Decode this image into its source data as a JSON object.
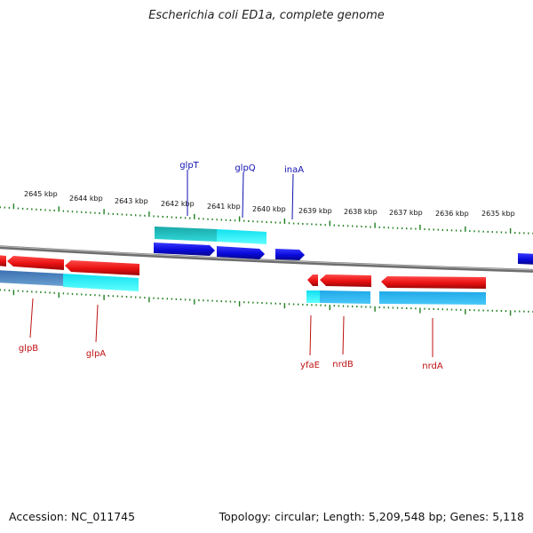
{
  "title": "Escherichia coli ED1a, complete genome",
  "footer": {
    "accession": "Accession: NC_011745",
    "summary": "Topology: circular; Length: 5,209,548 bp; Genes: 5,118"
  },
  "colors": {
    "forward_gene": "#1010e0",
    "reverse_gene": "#e81010",
    "forward_cds": "#20c8c8",
    "reverse_cds": "#30b8e8",
    "backbone": "#808080",
    "tick": "#208020",
    "forward_label": "#1010b0",
    "reverse_label": "#c01010"
  },
  "scale": {
    "unit": "kbp",
    "ticks": [
      {
        "value": 2645,
        "label": "2645 kbp"
      },
      {
        "value": 2644,
        "label": "2644 kbp"
      },
      {
        "value": 2643,
        "label": "2643 kbp"
      },
      {
        "value": 2642,
        "label": "2642 kbp"
      },
      {
        "value": 2641,
        "label": "2641 kbp"
      },
      {
        "value": 2640,
        "label": "2640 kbp"
      },
      {
        "value": 2639,
        "label": "2639 kbp"
      },
      {
        "value": 2638,
        "label": "2638 kbp"
      },
      {
        "value": 2637,
        "label": "2637 kbp"
      },
      {
        "value": 2636,
        "label": "2636 kbp"
      },
      {
        "value": 2635,
        "label": "2635 kbp"
      }
    ]
  },
  "forward_genes": [
    {
      "name": "glpT"
    },
    {
      "name": "glpQ"
    },
    {
      "name": "inaA"
    }
  ],
  "reverse_genes": [
    {
      "name": "glpB"
    },
    {
      "name": "glpA"
    },
    {
      "name": "yfaE"
    },
    {
      "name": "nrdB"
    },
    {
      "name": "nrdA"
    }
  ]
}
